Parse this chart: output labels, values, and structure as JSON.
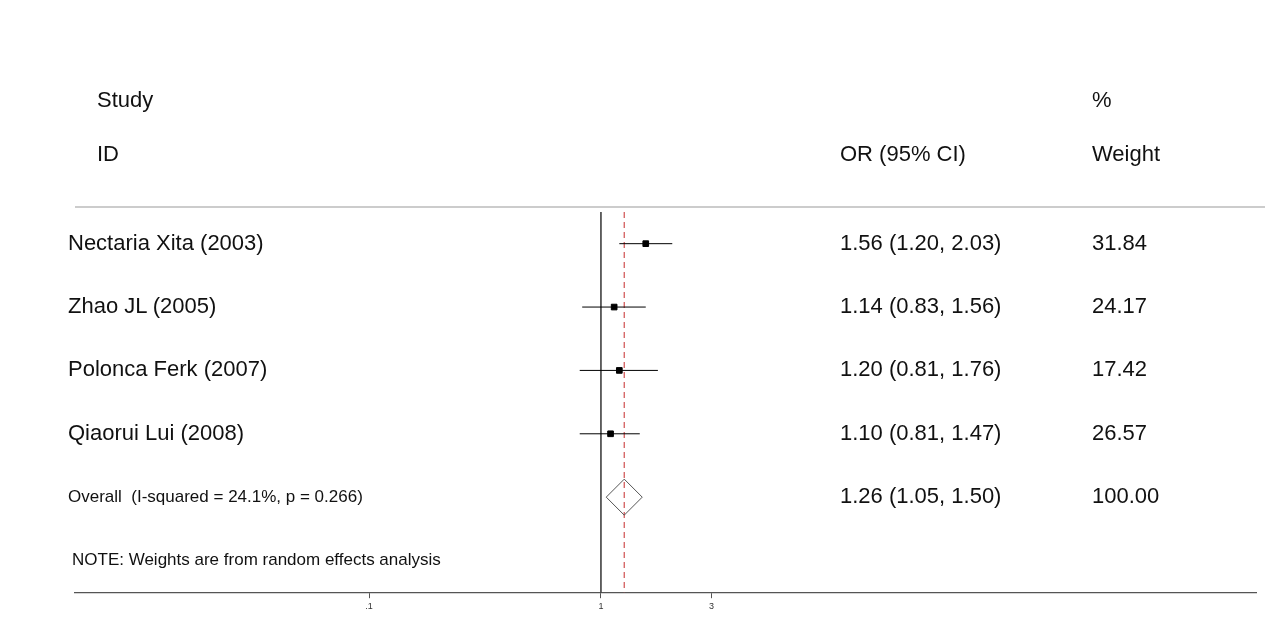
{
  "chart_data": {
    "type": "scatter",
    "orientation": "horizontal",
    "log": "x",
    "categories": [
      "Nectaria Xita (2003)",
      "Zhao JL (2005)",
      "Polonca Ferk (2007)",
      "Qiaorui Lui (2008)",
      "Overall  (I-squared = 24.1%, p = 0.266)",
      null
    ],
    "series": [
      {
        "color": "#000000",
        "marker": "square",
        "values": [
          1.56,
          1.14,
          1.2,
          1.1,
          null,
          null
        ],
        "errors": [
          [
            1.2,
            2.03
          ],
          [
            0.83,
            1.56
          ],
          [
            0.81,
            1.76
          ],
          [
            0.81,
            1.47
          ],
          null,
          null
        ]
      },
      {
        "color": "#555555",
        "marker": "diamond",
        "values": [
          null,
          null,
          null,
          null,
          1.26,
          null
        ]
      }
    ],
    "xlim": [
      0.0054,
      667
    ],
    "xticks": [
      {
        "value": 0.1,
        "label": ".1"
      },
      1,
      3
    ],
    "ref_lines": [
      {
        "axis": "x",
        "value": 1,
        "color": "#000000",
        "line_style": "solid"
      },
      {
        "axis": "x",
        "value": 1.26,
        "color": "#d05050",
        "line_style": "dashed"
      }
    ],
    "grid": false,
    "legend": false,
    "annotations": [
      "Study",
      "ID",
      "%",
      "OR (95% CI)",
      "Weight",
      "1.56 (1.20, 2.03)",
      "1.14 (0.83, 1.56)",
      "1.20 (0.81, 1.76)",
      "1.10 (0.81, 1.47)",
      "1.26 (1.05, 1.50)",
      "31.84",
      "24.17",
      "17.42",
      "26.57",
      "100.00",
      "NOTE: Weights are from random effects analysis"
    ]
  }
}
